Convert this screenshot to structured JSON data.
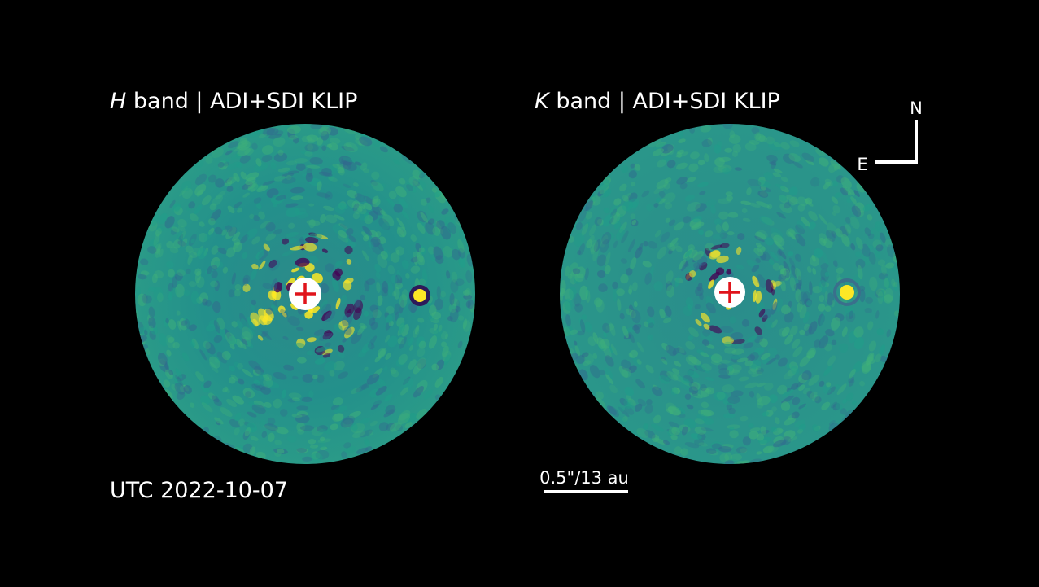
{
  "panels": [
    {
      "band": "H",
      "title": "band | ADI+SDI KLIP"
    },
    {
      "band": "K",
      "title": "band | ADI+SDI KLIP"
    }
  ],
  "date": "UTC 2022-10-07",
  "scale_bar": "0.5\"/13 au",
  "compass": {
    "north": "N",
    "east": "E"
  }
}
